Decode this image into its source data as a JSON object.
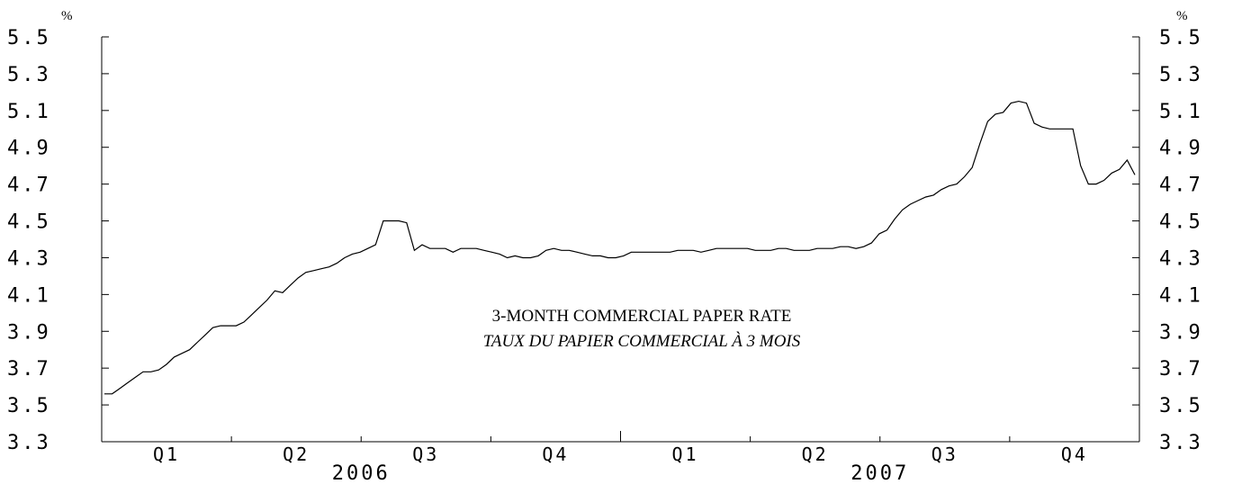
{
  "chart_data": {
    "type": "line",
    "title": "3-MONTH COMMERCIAL PAPER RATE",
    "subtitle": "TAUX DU PAPIER COMMERCIAL À 3 MOIS",
    "unit_left": "%",
    "unit_right": "%",
    "ylim": [
      3.3,
      5.5
    ],
    "yticks": [
      3.3,
      3.5,
      3.7,
      3.9,
      4.1,
      4.3,
      4.5,
      4.7,
      4.9,
      5.1,
      5.3,
      5.5
    ],
    "ytick_labels": [
      "3.3",
      "3.5",
      "3.7",
      "3.9",
      "4.1",
      "4.3",
      "4.5",
      "4.7",
      "4.9",
      "5.1",
      "5.3",
      "5.5"
    ],
    "quarters": [
      "Q1",
      "Q2",
      "Q3",
      "Q4",
      "Q1",
      "Q2",
      "Q3",
      "Q4"
    ],
    "years": [
      "2006",
      "2007"
    ],
    "grid": false,
    "series": [
      {
        "values": [
          3.56,
          3.56,
          3.59,
          3.62,
          3.65,
          3.68,
          3.68,
          3.69,
          3.72,
          3.76,
          3.78,
          3.8,
          3.84,
          3.88,
          3.92,
          3.93,
          3.93,
          3.93,
          3.95,
          3.99,
          4.03,
          4.07,
          4.12,
          4.11,
          4.15,
          4.19,
          4.22,
          4.23,
          4.24,
          4.25,
          4.27,
          4.3,
          4.32,
          4.33,
          4.35,
          4.37,
          4.5,
          4.5,
          4.5,
          4.49,
          4.34,
          4.37,
          4.35,
          4.35,
          4.35,
          4.33,
          4.35,
          4.35,
          4.35,
          4.34,
          4.33,
          4.32,
          4.3,
          4.31,
          4.3,
          4.3,
          4.31,
          4.34,
          4.35,
          4.34,
          4.34,
          4.33,
          4.32,
          4.31,
          4.31,
          4.3,
          4.3,
          4.31,
          4.33,
          4.33,
          4.33,
          4.33,
          4.33,
          4.33,
          4.34,
          4.34,
          4.34,
          4.33,
          4.34,
          4.35,
          4.35,
          4.35,
          4.35,
          4.35,
          4.34,
          4.34,
          4.34,
          4.35,
          4.35,
          4.34,
          4.34,
          4.34,
          4.35,
          4.35,
          4.35,
          4.36,
          4.36,
          4.35,
          4.36,
          4.38,
          4.43,
          4.45,
          4.51,
          4.56,
          4.59,
          4.61,
          4.63,
          4.64,
          4.67,
          4.69,
          4.7,
          4.74,
          4.79,
          4.92,
          5.04,
          5.08,
          5.09,
          5.14,
          5.15,
          5.14,
          5.03,
          5.01,
          5.0,
          5.0,
          5.0,
          5.0,
          4.8,
          4.7,
          4.7,
          4.72,
          4.76,
          4.78,
          4.83,
          4.75
        ]
      }
    ]
  }
}
